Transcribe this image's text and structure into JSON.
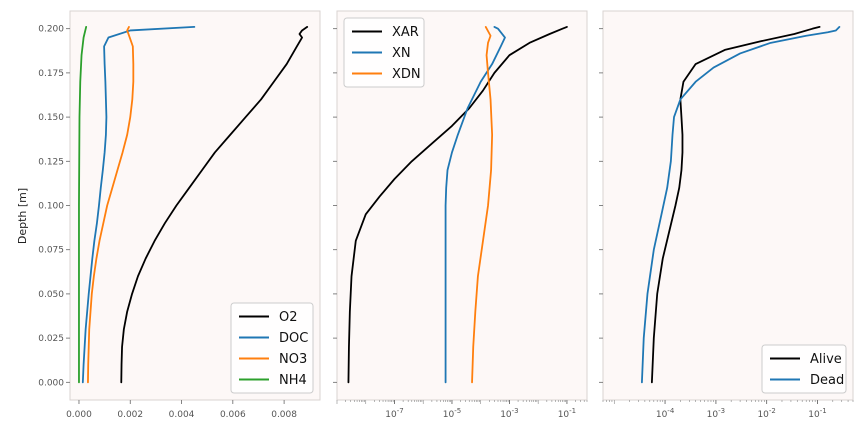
{
  "figure": {
    "ylabel": "Depth [m]"
  },
  "chart_data": [
    {
      "type": "line",
      "title": "",
      "xlabel": "",
      "ylabel": "Depth [m]",
      "xscale": "linear",
      "xlim": [
        -0.00035,
        0.0094
      ],
      "ylim": [
        -0.01,
        0.21
      ],
      "xticks": [
        0.0,
        0.002,
        0.004,
        0.006,
        0.008
      ],
      "xtick_labels": [
        "0.000",
        "0.002",
        "0.004",
        "0.006",
        "0.008"
      ],
      "yticks": [
        0.0,
        0.025,
        0.05,
        0.075,
        0.1,
        0.125,
        0.15,
        0.175,
        0.2
      ],
      "ytick_labels": [
        "0.000",
        "0.025",
        "0.050",
        "0.075",
        "0.100",
        "0.125",
        "0.150",
        "0.175",
        "0.200"
      ],
      "legend": "lower-right",
      "background": "#fdf8f7",
      "series": [
        {
          "name": "O2",
          "color": "#000000",
          "points": [
            [
              0.00165,
              0.0
            ],
            [
              0.00166,
              0.01
            ],
            [
              0.00168,
              0.02
            ],
            [
              0.00175,
              0.03
            ],
            [
              0.00188,
              0.04
            ],
            [
              0.00207,
              0.05
            ],
            [
              0.0023,
              0.06
            ],
            [
              0.0026,
              0.07
            ],
            [
              0.00295,
              0.08
            ],
            [
              0.00335,
              0.09
            ],
            [
              0.0038,
              0.1
            ],
            [
              0.0043,
              0.11
            ],
            [
              0.0048,
              0.12
            ],
            [
              0.0053,
              0.13
            ],
            [
              0.0059,
              0.14
            ],
            [
              0.0065,
              0.15
            ],
            [
              0.0071,
              0.16
            ],
            [
              0.0076,
              0.17
            ],
            [
              0.0081,
              0.18
            ],
            [
              0.0085,
              0.19
            ],
            [
              0.0087,
              0.195
            ],
            [
              0.0086,
              0.197
            ],
            [
              0.0087,
              0.199
            ],
            [
              0.0089,
              0.201
            ]
          ]
        },
        {
          "name": "DOC",
          "color": "#1f77b4",
          "points": [
            [
              0.00015,
              0.0
            ],
            [
              0.00018,
              0.01
            ],
            [
              0.00022,
              0.02
            ],
            [
              0.00026,
              0.03
            ],
            [
              0.00032,
              0.04
            ],
            [
              0.00038,
              0.05
            ],
            [
              0.00045,
              0.06
            ],
            [
              0.00052,
              0.07
            ],
            [
              0.0006,
              0.08
            ],
            [
              0.0007,
              0.09
            ],
            [
              0.00078,
              0.1
            ],
            [
              0.00085,
              0.11
            ],
            [
              0.00093,
              0.12
            ],
            [
              0.001,
              0.13
            ],
            [
              0.00105,
              0.14
            ],
            [
              0.00107,
              0.15
            ],
            [
              0.00105,
              0.16
            ],
            [
              0.00103,
              0.17
            ],
            [
              0.001,
              0.18
            ],
            [
              0.00098,
              0.19
            ],
            [
              0.00115,
              0.195
            ],
            [
              0.002,
              0.199
            ],
            [
              0.0045,
              0.201
            ]
          ]
        },
        {
          "name": "NO3",
          "color": "#ff7f0e",
          "points": [
            [
              0.00035,
              0.0
            ],
            [
              0.00036,
              0.01
            ],
            [
              0.00038,
              0.02
            ],
            [
              0.0004,
              0.03
            ],
            [
              0.00045,
              0.04
            ],
            [
              0.0005,
              0.05
            ],
            [
              0.00058,
              0.06
            ],
            [
              0.00068,
              0.07
            ],
            [
              0.0008,
              0.08
            ],
            [
              0.00095,
              0.09
            ],
            [
              0.0011,
              0.1
            ],
            [
              0.0013,
              0.11
            ],
            [
              0.0015,
              0.12
            ],
            [
              0.0017,
              0.13
            ],
            [
              0.00188,
              0.14
            ],
            [
              0.002,
              0.15
            ],
            [
              0.00208,
              0.16
            ],
            [
              0.00212,
              0.17
            ],
            [
              0.00212,
              0.18
            ],
            [
              0.0021,
              0.19
            ],
            [
              0.00198,
              0.195
            ],
            [
              0.00188,
              0.199
            ],
            [
              0.00195,
              0.201
            ]
          ]
        },
        {
          "name": "NH4",
          "color": "#2ca02c",
          "points": [
            [
              0.0,
              0.0
            ],
            [
              0.0,
              0.05
            ],
            [
              0.0,
              0.1
            ],
            [
              2e-05,
              0.15
            ],
            [
              5e-05,
              0.17
            ],
            [
              0.0001,
              0.185
            ],
            [
              0.00018,
              0.195
            ],
            [
              0.00028,
              0.201
            ]
          ]
        }
      ]
    },
    {
      "type": "line",
      "title": "",
      "xlabel": "",
      "ylabel": "",
      "xscale": "log",
      "xlim": [
        1e-09,
        0.5
      ],
      "ylim": [
        -0.01,
        0.21
      ],
      "xticks": [
        1e-07,
        1e-05,
        0.001,
        0.1
      ],
      "xtick_labels": [
        "10",
        "10",
        "10",
        "10"
      ],
      "xtick_exponents": [
        "-7",
        "-5",
        "-3",
        "-1"
      ],
      "legend": "upper-left",
      "background": "#fdf8f7",
      "series": [
        {
          "name": "XAR",
          "color": "#000000",
          "points": [
            [
              2.5e-09,
              0.0
            ],
            [
              2.6e-09,
              0.02
            ],
            [
              2.8e-09,
              0.04
            ],
            [
              3.2e-09,
              0.06
            ],
            [
              4.5e-09,
              0.08
            ],
            [
              1e-08,
              0.095
            ],
            [
              3e-08,
              0.105
            ],
            [
              1e-07,
              0.115
            ],
            [
              4e-07,
              0.125
            ],
            [
              2e-06,
              0.135
            ],
            [
              1e-05,
              0.145
            ],
            [
              4e-05,
              0.155
            ],
            [
              0.00012,
              0.165
            ],
            [
              0.0003,
              0.175
            ],
            [
              0.001,
              0.185
            ],
            [
              0.005,
              0.192
            ],
            [
              0.025,
              0.197
            ],
            [
              0.07,
              0.2
            ],
            [
              0.1,
              0.201
            ]
          ]
        },
        {
          "name": "XN",
          "color": "#1f77b4",
          "points": [
            [
              6e-06,
              0.0
            ],
            [
              6e-06,
              0.05
            ],
            [
              6e-06,
              0.1
            ],
            [
              6.3e-06,
              0.11
            ],
            [
              7e-06,
              0.12
            ],
            [
              1e-05,
              0.13
            ],
            [
              1.6e-05,
              0.14
            ],
            [
              3.5e-05,
              0.155
            ],
            [
              0.0001,
              0.17
            ],
            [
              0.00025,
              0.18
            ],
            [
              0.0005,
              0.19
            ],
            [
              0.0007,
              0.195
            ],
            [
              0.0004,
              0.2
            ],
            [
              0.0003,
              0.201
            ]
          ]
        },
        {
          "name": "XDN",
          "color": "#ff7f0e",
          "points": [
            [
              5e-05,
              0.0
            ],
            [
              5.5e-05,
              0.02
            ],
            [
              6.5e-05,
              0.04
            ],
            [
              8e-05,
              0.06
            ],
            [
              0.00012,
              0.08
            ],
            [
              0.00018,
              0.1
            ],
            [
              0.00023,
              0.12
            ],
            [
              0.00025,
              0.14
            ],
            [
              0.00022,
              0.16
            ],
            [
              0.00018,
              0.175
            ],
            [
              0.00016,
              0.185
            ],
            [
              0.00018,
              0.192
            ],
            [
              0.00022,
              0.196
            ],
            [
              0.00015,
              0.201
            ]
          ]
        }
      ]
    },
    {
      "type": "line",
      "title": "",
      "xlabel": "",
      "ylabel": "",
      "xscale": "log",
      "xlim": [
        6e-06,
        0.5
      ],
      "ylim": [
        -0.01,
        0.21
      ],
      "xticks": [
        0.0001,
        0.001,
        0.01,
        0.1
      ],
      "xtick_labels": [
        "10",
        "10",
        "10",
        "10"
      ],
      "xtick_exponents": [
        "-4",
        "-3",
        "-2",
        "-1"
      ],
      "legend": "lower-right",
      "background": "#fdf8f7",
      "series": [
        {
          "name": "Alive",
          "color": "#000000",
          "points": [
            [
              5.5e-05,
              0.0
            ],
            [
              6e-05,
              0.025
            ],
            [
              7e-05,
              0.05
            ],
            [
              9e-05,
              0.07
            ],
            [
              0.00012,
              0.085
            ],
            [
              0.00016,
              0.1
            ],
            [
              0.00019,
              0.11
            ],
            [
              0.00021,
              0.12
            ],
            [
              0.00022,
              0.13
            ],
            [
              0.00022,
              0.14
            ],
            [
              0.00021,
              0.15
            ],
            [
              0.0002,
              0.16
            ],
            [
              0.00023,
              0.17
            ],
            [
              0.0004,
              0.18
            ],
            [
              0.0015,
              0.188
            ],
            [
              0.008,
              0.193
            ],
            [
              0.035,
              0.197
            ],
            [
              0.08,
              0.2
            ],
            [
              0.11,
              0.201
            ]
          ]
        },
        {
          "name": "Dead",
          "color": "#1f77b4",
          "points": [
            [
              3.5e-05,
              0.0
            ],
            [
              3.8e-05,
              0.025
            ],
            [
              4.5e-05,
              0.05
            ],
            [
              6e-05,
              0.075
            ],
            [
              8.5e-05,
              0.095
            ],
            [
              0.00011,
              0.11
            ],
            [
              0.00013,
              0.125
            ],
            [
              0.00014,
              0.14
            ],
            [
              0.00015,
              0.15
            ],
            [
              0.0002,
              0.16
            ],
            [
              0.0004,
              0.17
            ],
            [
              0.0009,
              0.178
            ],
            [
              0.003,
              0.186
            ],
            [
              0.012,
              0.192
            ],
            [
              0.06,
              0.196
            ],
            [
              0.16,
              0.198
            ],
            [
              0.23,
              0.199
            ],
            [
              0.27,
              0.201
            ]
          ]
        }
      ]
    }
  ]
}
